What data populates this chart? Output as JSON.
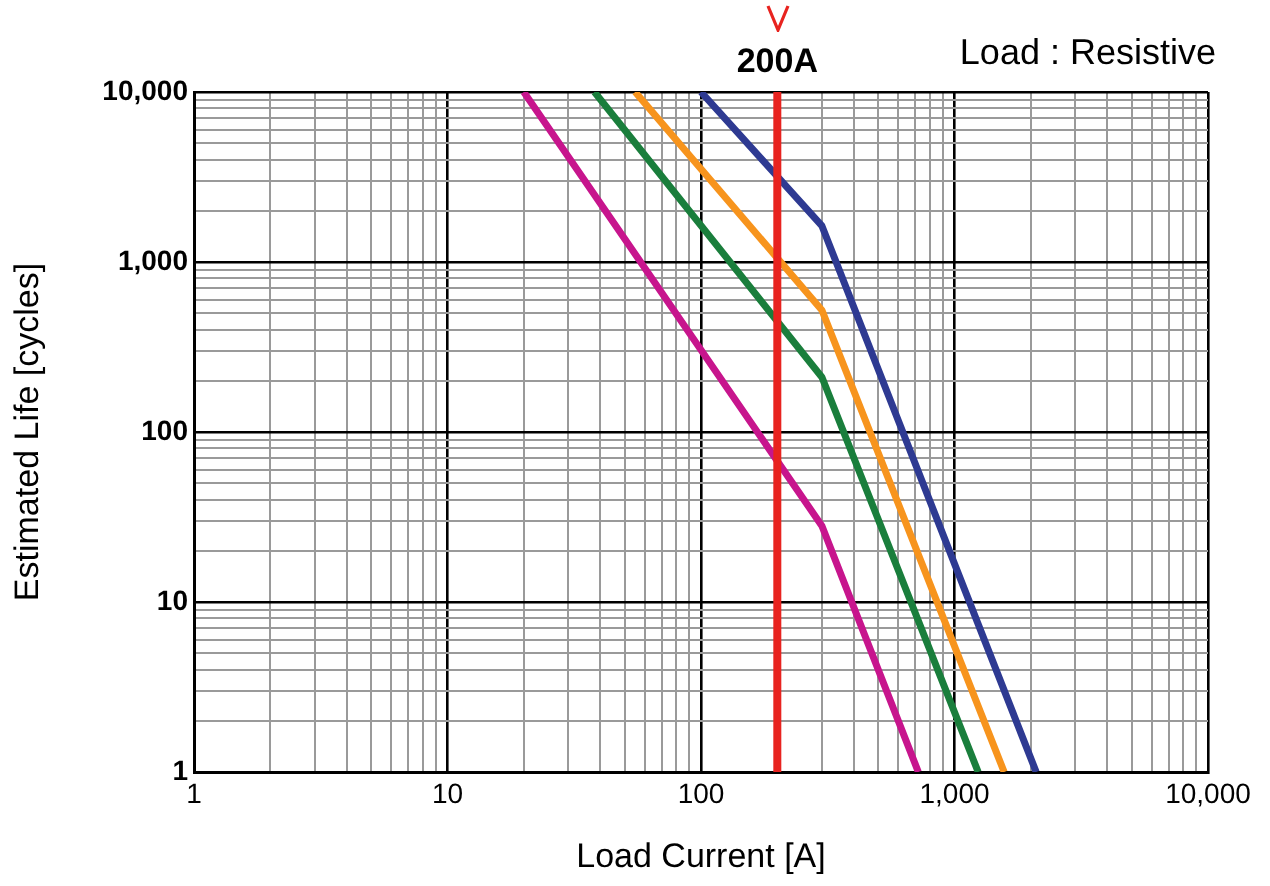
{
  "chart_data": {
    "type": "line",
    "xlabel": "Load Current [A]",
    "ylabel": "Estimated Life [cycles]",
    "log": "xy",
    "grid": true,
    "legend": false,
    "marker": "none",
    "line_style": "solid",
    "xlim": [
      1,
      10000
    ],
    "ylim": [
      1,
      10000
    ],
    "xticks": [
      1,
      10,
      100,
      {
        "value": 1000,
        "label": "1,000"
      },
      {
        "value": 10000,
        "label": "10,000"
      }
    ],
    "yticks": [
      1,
      10,
      100,
      {
        "value": 1000,
        "label": "1,000"
      },
      {
        "value": 10000,
        "label": "10,000"
      }
    ],
    "series": [
      {
        "color": "#c7158d",
        "x": [
          20,
          300,
          720
        ],
        "values": [
          10000,
          28,
          1
        ]
      },
      {
        "color": "#1a7e3c",
        "x": [
          38,
          300,
          1240
        ],
        "values": [
          10000,
          210,
          1
        ]
      },
      {
        "color": "#f7941d",
        "x": [
          55,
          300,
          1570
        ],
        "values": [
          10000,
          520,
          1
        ]
      },
      {
        "color": "#2e3a92",
        "x": [
          100,
          300,
          2100
        ],
        "values": [
          10000,
          1630,
          1
        ]
      }
    ],
    "ref_lines": [
      {
        "axis": "x",
        "value": 200,
        "label": "200A",
        "color": "#e8231f"
      }
    ],
    "annotations": [
      "Load : Resistive"
    ]
  }
}
